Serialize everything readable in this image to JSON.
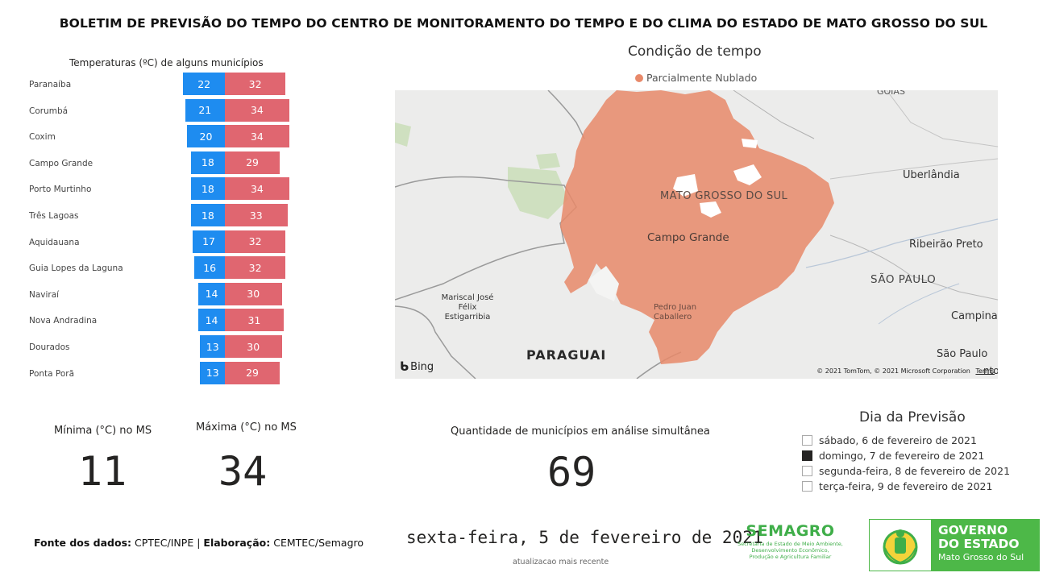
{
  "header": {
    "title": "BOLETIM DE PREVISÃO DO TEMPO DO CENTRO DE MONITORAMENTO DO TEMPO E DO CLIMA DO ESTADO DE MATO GROSSO DO SUL"
  },
  "temperatures": {
    "title": "Temperaturas (ºC) de alguns municípios",
    "rows": [
      {
        "city": "Paranaíba",
        "min": 22,
        "max": 32
      },
      {
        "city": "Corumbá",
        "min": 21,
        "max": 34
      },
      {
        "city": "Coxim",
        "min": 20,
        "max": 34
      },
      {
        "city": "Campo Grande",
        "min": 18,
        "max": 29
      },
      {
        "city": "Porto Murtinho",
        "min": 18,
        "max": 34
      },
      {
        "city": "Três Lagoas",
        "min": 18,
        "max": 33
      },
      {
        "city": "Aquidauana",
        "min": 17,
        "max": 32
      },
      {
        "city": "Guia Lopes da Laguna",
        "min": 16,
        "max": 32
      },
      {
        "city": "Naviraí",
        "min": 14,
        "max": 30
      },
      {
        "city": "Nova Andradina",
        "min": 14,
        "max": 31
      },
      {
        "city": "Dourados",
        "min": 13,
        "max": 30
      },
      {
        "city": "Ponta Porã",
        "min": 13,
        "max": 29
      }
    ],
    "colors": {
      "min": "#1e8cf0",
      "max": "#e06670"
    }
  },
  "map": {
    "title": "Condição de tempo",
    "legend": {
      "label": "Parcialmente Nublado",
      "color": "#e8896a"
    },
    "labels": {
      "state": "MATO GROSSO DO SUL",
      "capital": "Campo Grande",
      "uberlandia": "Uberlândia",
      "ribeirao": "Ribeirão Preto",
      "saopaulo_state": "SÃO PAULO",
      "campinas": "Campina",
      "saopaulo_city": "São Paulo",
      "santos": "nto",
      "paraguai": "PARAGUAI",
      "pedro_juan": "Pedro Juan Caballero",
      "mariscal": "Mariscal José Félix Estigarribia",
      "goias": "GOIÁS"
    },
    "bing": "Bing",
    "attribution": "© 2021 TomTom, © 2021 Microsoft Corporation",
    "terms": "Terms"
  },
  "kpis": {
    "min_label": "Mínima (°C) no MS",
    "min_value": "11",
    "max_label": "Máxima (°C) no MS",
    "max_value": "34",
    "count_label": "Quantidade de municípios em análise simultânea",
    "count_value": "69"
  },
  "slicer": {
    "title": "Dia da Previsão",
    "options": [
      {
        "label": "sábado, 6 de fevereiro de 2021",
        "checked": false
      },
      {
        "label": "domingo, 7 de fevereiro de 2021",
        "checked": true
      },
      {
        "label": "segunda-feira, 8 de fevereiro de 2021",
        "checked": false
      },
      {
        "label": "terça-feira, 9 de fevereiro de 2021",
        "checked": false
      }
    ]
  },
  "footer": {
    "source_label": "Fonte dos dados:",
    "source_value": "CPTEC/INPE",
    "sep": "|",
    "elab_label": "Elaboração:",
    "elab_value": "CEMTEC/Semagro",
    "date": "sexta-feira, 5 de fevereiro de 2021",
    "date_sub": "atualizacao mais recente"
  },
  "logos": {
    "semagro_name": "SEMAGRO",
    "semagro_sub1": "Secretaria de Estado de Meio Ambiente,",
    "semagro_sub2": "Desenvolvimento Econômico,",
    "semagro_sub3": "Produção e Agricultura Familiar",
    "gov_l1": "GOVERNO",
    "gov_l2": "DO ESTADO",
    "gov_l3": "Mato Grosso do Sul"
  }
}
